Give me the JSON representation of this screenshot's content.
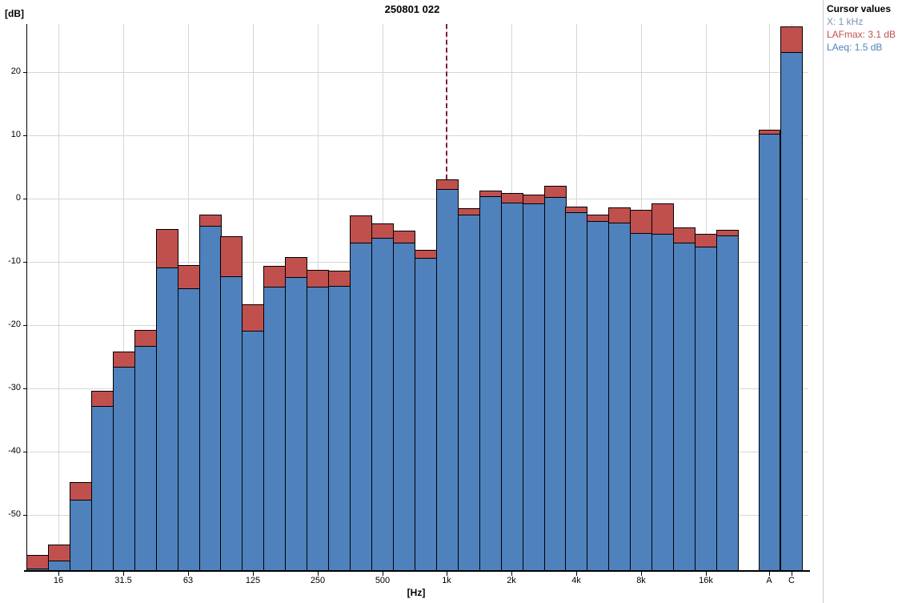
{
  "window": {
    "background": "#ffffff"
  },
  "panel": {
    "title": "Cursor values",
    "lines": [
      {
        "id": "cursor-x-value",
        "label": "X: 1 kHz",
        "color": "#7c96b2"
      },
      {
        "id": "cursor-lafmax-value",
        "label": "LAFmax: 3.1 dB",
        "color": "#c0504d"
      },
      {
        "id": "cursor-laeq-value",
        "label": "LAeq: 1.5 dB",
        "color": "#4f81bd"
      }
    ]
  },
  "chart_data": {
    "type": "bar",
    "title": "250801 022",
    "ylabel": "[dB]",
    "xlabel": "[Hz]",
    "ylim": [
      -58.7,
      27.6
    ],
    "yticks": [
      20,
      10,
      0,
      -10,
      -20,
      -30,
      -40,
      -50
    ],
    "grid": true,
    "legend_position": "none",
    "bands": [
      "12.5",
      "16",
      "20",
      "25",
      "31.5",
      "40",
      "50",
      "63",
      "80",
      "100",
      "125",
      "160",
      "200",
      "250",
      "315",
      "400",
      "500",
      "630",
      "800",
      "1k",
      "1.25k",
      "1.6k",
      "2k",
      "2.5k",
      "3.15k",
      "4k",
      "5k",
      "6.3k",
      "8k",
      "10k",
      "12.5k",
      "16k",
      "20k"
    ],
    "labeled_band_indices": [
      1,
      4,
      7,
      10,
      13,
      16,
      19,
      22,
      25,
      28,
      31
    ],
    "xtick_labels": [
      "16",
      "31.5",
      "63",
      "125",
      "250",
      "500",
      "1k",
      "2k",
      "4k",
      "8k",
      "16k"
    ],
    "series": [
      {
        "name": "LAFmax",
        "color": "#c0504d",
        "values": [
          -56.3,
          -54.7,
          -44.8,
          -30.4,
          -24.2,
          -20.8,
          -4.8,
          -10.5,
          -2.5,
          -5.9,
          -16.7,
          -10.6,
          -9.2,
          -11.3,
          -11.4,
          -2.7,
          -3.9,
          -5.1,
          -8.1,
          3.1,
          -1.5,
          1.3,
          0.9,
          0.6,
          2.0,
          -1.3,
          -2.5,
          -1.4,
          -1.8,
          -0.8,
          -4.6,
          -5.6,
          -4.9
        ]
      },
      {
        "name": "LAeq",
        "color": "#4f81bd",
        "values": [
          -58.4,
          -57.2,
          -47.6,
          -32.8,
          -26.5,
          -23.3,
          -10.9,
          -14.2,
          -4.3,
          -12.2,
          -20.9,
          -13.9,
          -12.4,
          -13.9,
          -13.8,
          -7.0,
          -6.2,
          -7.0,
          -9.4,
          1.5,
          -2.5,
          0.4,
          -0.6,
          -0.8,
          0.3,
          -2.2,
          -3.5,
          -3.8,
          -5.4,
          -5.6,
          -7.0,
          -7.6,
          -5.8
        ]
      }
    ],
    "totals": {
      "labels": [
        "A",
        "C"
      ],
      "LAFmax": [
        10.9,
        27.2
      ],
      "LAeq": [
        10.3,
        23.2
      ]
    },
    "cursor": {
      "band": "1k",
      "x_label": "1 kHz",
      "lafmax_db": 3.1,
      "laeq_db": 1.5,
      "color": "#7b1f3c"
    },
    "colors": {
      "bar_border": "#000000",
      "gridline": "#d6d6d6",
      "axis": "#000000"
    }
  }
}
